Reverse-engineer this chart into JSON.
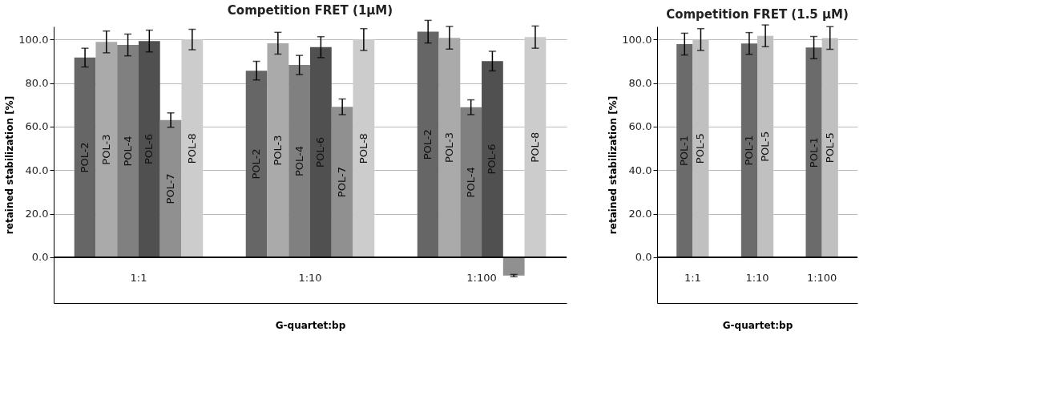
{
  "chart_data": [
    {
      "type": "bar",
      "title": "Competition FRET  (1µM)",
      "xlabel": "G-quartet:bp",
      "ylabel": "retained stabilization  [%]",
      "categories": [
        "1:1",
        "1:10",
        "1:100"
      ],
      "series": [
        {
          "name": "POL-2",
          "color": "#666666",
          "values": [
            91.7,
            85.7,
            103.6
          ],
          "errors": [
            4.3,
            4.3,
            5.2
          ]
        },
        {
          "name": "POL-3",
          "color": "#aaaaaa",
          "values": [
            98.9,
            98.3,
            100.8
          ],
          "errors": [
            5.0,
            5.0,
            5.2
          ]
        },
        {
          "name": "POL-4",
          "color": "#808080",
          "values": [
            97.5,
            88.3,
            68.9
          ],
          "errors": [
            5.0,
            4.4,
            3.4
          ]
        },
        {
          "name": "POL-6",
          "color": "#505050",
          "values": [
            99.3,
            96.5,
            90.1
          ],
          "errors": [
            5.0,
            4.8,
            4.5
          ]
        },
        {
          "name": "POL-7",
          "color": "#909090",
          "values": [
            63.0,
            69.1,
            -8.4
          ],
          "errors": [
            3.3,
            3.6,
            0.5
          ]
        },
        {
          "name": "POL-8",
          "color": "#cccccc",
          "values": [
            100.0,
            100.0,
            101.1
          ],
          "errors": [
            4.7,
            5.0,
            5.1
          ]
        }
      ],
      "ylim": [
        -21,
        106
      ],
      "yticks": [
        {
          "value": 0,
          "label": "0.0"
        },
        {
          "value": 20,
          "label": "20.0"
        },
        {
          "value": 40,
          "label": "40.0"
        },
        {
          "value": 60,
          "label": "60.0"
        },
        {
          "value": 80,
          "label": "80.0"
        },
        {
          "value": 100,
          "label": "100.0"
        }
      ],
      "grid": "y"
    },
    {
      "type": "bar",
      "title": "Competition FRET  (1.5 µM)",
      "xlabel": "G-quartet:bp",
      "ylabel": "retained stabilization  [%]",
      "categories": [
        "1:1",
        "1:10",
        "1:100"
      ],
      "series": [
        {
          "name": "POL-1",
          "color": "#6b6b6b",
          "values": [
            97.9,
            98.2,
            96.3
          ],
          "errors": [
            5.0,
            5.0,
            5.1
          ]
        },
        {
          "name": "POL-5",
          "color": "#c0c0c0",
          "values": [
            100.0,
            101.7,
            100.7
          ],
          "errors": [
            5.0,
            5.0,
            5.2
          ]
        }
      ],
      "ylim": [
        -21,
        106
      ],
      "yticks": [
        {
          "value": 0,
          "label": "0.0"
        },
        {
          "value": 20,
          "label": "20.0"
        },
        {
          "value": 40,
          "label": "40.0"
        },
        {
          "value": 60,
          "label": "60.0"
        },
        {
          "value": 80,
          "label": "80.0"
        },
        {
          "value": 100,
          "label": "100.0"
        }
      ],
      "grid": "y"
    }
  ]
}
